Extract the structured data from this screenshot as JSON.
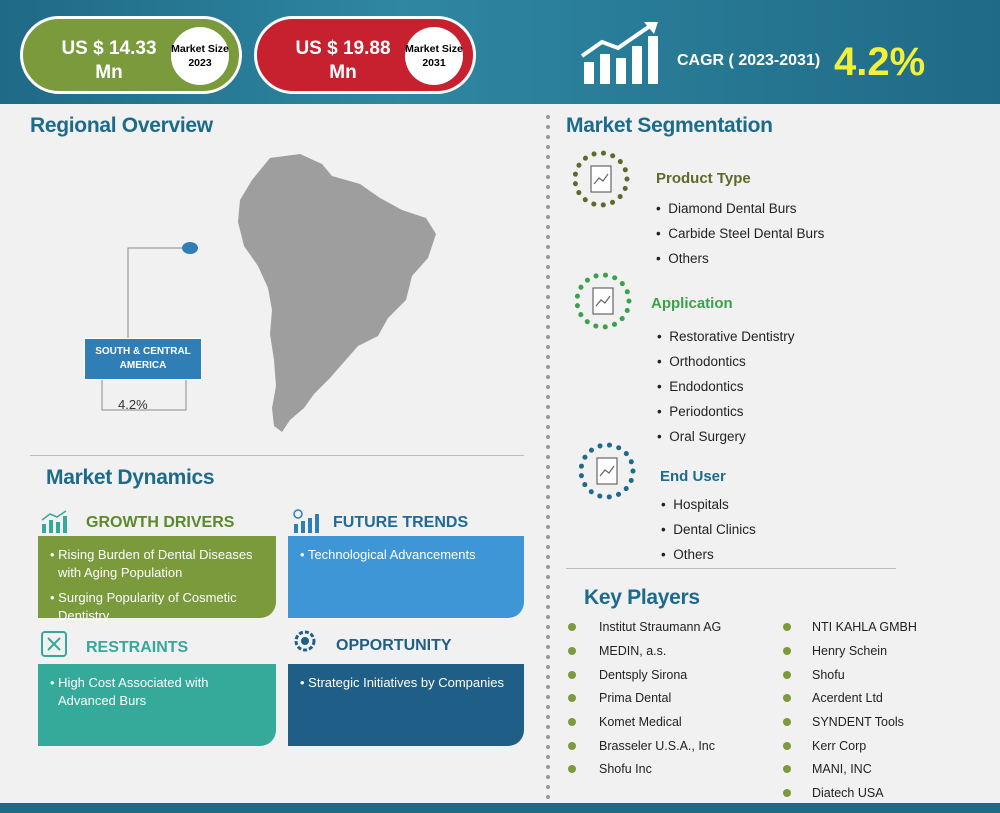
{
  "header": {
    "market_2023": {
      "value": "US $ 14.33 Mn",
      "label": "Market Size 2023"
    },
    "market_2031": {
      "value": "US $ 19.88 Mn",
      "label": "Market Size 2031"
    },
    "cagr_label": "CAGR ( 2023-2031)",
    "cagr_value": "4.2%"
  },
  "regional": {
    "title": "Regional Overview",
    "region_name": "SOUTH & CENTRAL AMERICA",
    "region_cagr": "4.2%"
  },
  "dynamics": {
    "title": "Market Dynamics",
    "growth_drivers": {
      "title": "GROWTH DRIVERS",
      "items": [
        "Rising Burden of Dental Diseases with Aging Population",
        "Surging Popularity of Cosmetic Dentistry"
      ]
    },
    "future_trends": {
      "title": "FUTURE TRENDS",
      "items": [
        "Technological Advancements"
      ]
    },
    "restraints": {
      "title": "RESTRAINTS",
      "items": [
        "High Cost Associated with Advanced Burs"
      ]
    },
    "opportunity": {
      "title": "OPPORTUNITY",
      "items": [
        "Strategic Initiatives by Companies"
      ]
    }
  },
  "segmentation": {
    "title": "Market Segmentation",
    "groups": [
      {
        "name": "Product Type",
        "color": "#5b6b2b",
        "items": [
          "Diamond Dental Burs",
          "Carbide Steel Dental Burs",
          "Others"
        ]
      },
      {
        "name": "Application",
        "color": "#3aa24a",
        "items": [
          "Restorative Dentistry",
          "Orthodontics",
          "Endodontics",
          "Periodontics",
          "Oral Surgery"
        ]
      },
      {
        "name": "End User",
        "color": "#1c6b8c",
        "items": [
          "Hospitals",
          "Dental Clinics",
          "Others"
        ]
      }
    ]
  },
  "key_players": {
    "title": "Key Players",
    "left": [
      "Institut Straumann AG",
      "MEDIN, a.s.",
      "Dentsply Sirona",
      "Prima Dental",
      "Komet Medical",
      "Brasseler U.S.A., Inc",
      "Shofu Inc"
    ],
    "right": [
      "NTI KAHLA GMBH",
      "Henry Schein",
      "Shofu",
      "Acerdent Ltd",
      "SYNDENT Tools",
      "Kerr Corp",
      "MANI, INC",
      "Diatech USA"
    ]
  },
  "colors": {
    "header": "#1f6a86",
    "green": "#7a9a3c",
    "red": "#c7202f",
    "blue": "#2f7fb6",
    "teal": "#35a99a",
    "navy": "#1f5f87",
    "accent": "#f3f03a"
  }
}
